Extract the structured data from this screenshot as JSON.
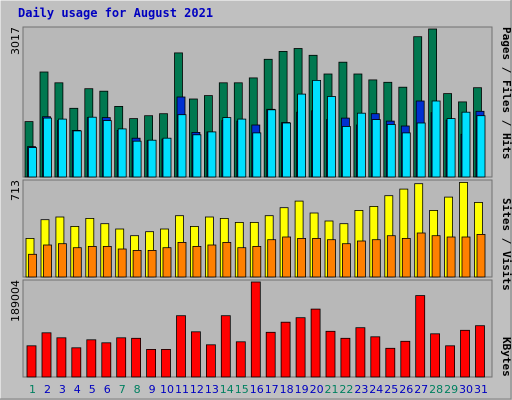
{
  "chart_data": {
    "type": "bar",
    "title": "Daily usage for August 2021",
    "categories": [
      "1",
      "2",
      "3",
      "4",
      "5",
      "6",
      "7",
      "8",
      "9",
      "10",
      "11",
      "12",
      "13",
      "14",
      "15",
      "16",
      "17",
      "18",
      "19",
      "20",
      "21",
      "22",
      "23",
      "24",
      "25",
      "26",
      "27",
      "28",
      "29",
      "30",
      "31"
    ],
    "weekend_days": [
      "1",
      "7",
      "8",
      "14",
      "15",
      "21",
      "22",
      "28",
      "29"
    ],
    "colors": {
      "background": "#c0c0c0",
      "plot_bg": "#b8b8b8",
      "hits": "#007850",
      "files": "#0030d0",
      "pages": "#00e0ff",
      "visits": "#ffff00",
      "sites": "#ff8000",
      "kbytes": "#ff0000",
      "title": "#0000c0",
      "weekday_label": "#0000c0",
      "weekend_label": "#008060"
    },
    "panels": [
      {
        "name": "top",
        "ymax_label": "3017",
        "ymax": 3017,
        "right_labels": [
          {
            "text": "Pages",
            "color": "#00e0ff"
          },
          {
            "text": " / ",
            "color": "#000000"
          },
          {
            "text": "Files",
            "color": "#0000c0"
          },
          {
            "text": " / ",
            "color": "#000000"
          },
          {
            "text": "Hits",
            "color": "#008060"
          }
        ],
        "series": [
          {
            "name": "Hits",
            "color": "#007850",
            "values": [
              1130,
              2140,
              1920,
              1400,
              1800,
              1750,
              1440,
              1190,
              1250,
              1290,
              2530,
              1590,
              1660,
              1920,
              1920,
              2020,
              2400,
              2560,
              2620,
              2480,
              2100,
              2340,
              2100,
              1980,
              1930,
              1830,
              2860,
              3017,
              1700,
              1530,
              1820
            ]
          },
          {
            "name": "Files",
            "color": "#0030d0",
            "values": [
              620,
              1230,
              1150,
              950,
              1210,
              1210,
              950,
              790,
              740,
              770,
              1630,
              910,
              920,
              1150,
              1140,
              1060,
              1380,
              1110,
              1320,
              1350,
              1170,
              1200,
              1060,
              1290,
              1140,
              1040,
              1550,
              1310,
              1160,
              870,
              1340
            ]
          },
          {
            "name": "Pages",
            "color": "#00e0ff",
            "values": [
              600,
              1200,
              1180,
              940,
              1220,
              1150,
              980,
              730,
              750,
              790,
              1270,
              860,
              920,
              1210,
              1180,
              900,
              1370,
              1100,
              1690,
              1970,
              1640,
              1030,
              1300,
              1170,
              1070,
              900,
              1100,
              1550,
              1190,
              1320,
              1250
            ]
          }
        ]
      },
      {
        "name": "middle",
        "ymax_label": "713",
        "ymax": 713,
        "right_labels": [
          {
            "text": "Sites",
            "color": "#ff8000"
          },
          {
            "text": " / ",
            "color": "#000000"
          },
          {
            "text": "Visits",
            "color": "#e0e000"
          }
        ],
        "series": [
          {
            "name": "Visits",
            "color": "#ffff00",
            "values": [
              290,
              430,
              450,
              380,
              440,
              400,
              360,
              310,
              340,
              360,
              460,
              380,
              450,
              440,
              410,
              410,
              460,
              520,
              570,
              480,
              420,
              400,
              500,
              530,
              610,
              660,
              700,
              500,
              600,
              710,
              560
            ]
          },
          {
            "name": "Sites",
            "color": "#ff8000",
            "values": [
              170,
              240,
              250,
              220,
              230,
              230,
              210,
              200,
              200,
              220,
              260,
              230,
              240,
              260,
              220,
              230,
              280,
              300,
              290,
              290,
              280,
              250,
              270,
              280,
              310,
              290,
              330,
              310,
              300,
              300,
              320
            ]
          }
        ]
      },
      {
        "name": "bottom",
        "ymax_label": "189004",
        "ymax": 189004,
        "right_labels": [
          {
            "text": "KBytes",
            "color": "#ff0000"
          }
        ],
        "series": [
          {
            "name": "KBytes",
            "color": "#ff0000",
            "values": [
              62000,
              88000,
              78000,
              58000,
              74000,
              68000,
              78000,
              77000,
              55000,
              55000,
              122000,
              90000,
              64000,
              122000,
              70000,
              189004,
              89000,
              109000,
              118000,
              135000,
              91000,
              77000,
              98000,
              80000,
              57000,
              71000,
              162000,
              86000,
              62000,
              93000,
              102000
            ]
          }
        ]
      }
    ]
  }
}
